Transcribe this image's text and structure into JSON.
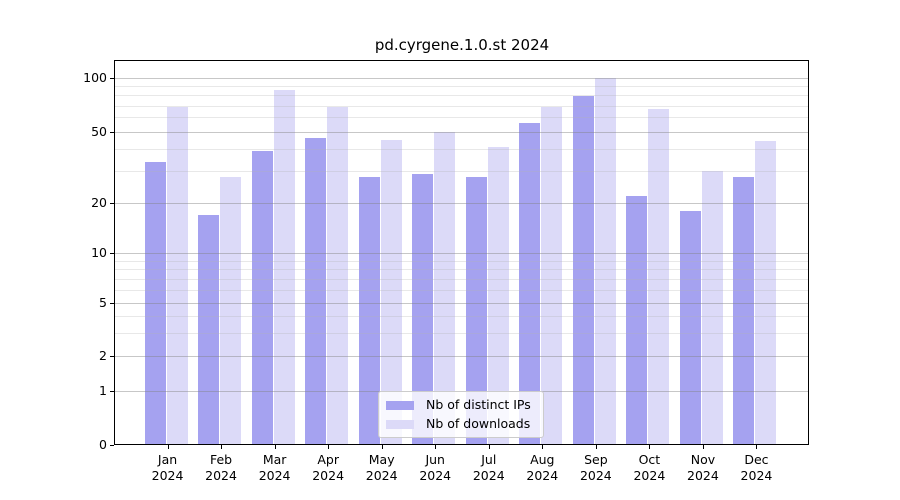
{
  "title": "pd.cyrgene.1.0.st 2024",
  "chart_data": {
    "type": "bar",
    "title": "pd.cyrgene.1.0.st 2024",
    "categories": [
      "Jan 2024",
      "Feb 2024",
      "Mar 2024",
      "Apr 2024",
      "May 2024",
      "Jun 2024",
      "Jul 2024",
      "Aug 2024",
      "Sep 2024",
      "Oct 2024",
      "Nov 2024",
      "Dec 2024"
    ],
    "series": [
      {
        "name": "Nb of distinct IPs",
        "key": "distinct-ips",
        "color": "#a5a2f0",
        "values": [
          34,
          17,
          39,
          46,
          28,
          29,
          28,
          56,
          79,
          22,
          18,
          28
        ]
      },
      {
        "name": "Nb of downloads",
        "key": "downloads",
        "color": "#dcdaf8",
        "values": [
          69,
          28,
          86,
          69,
          45,
          50,
          41,
          69,
          100,
          67,
          30,
          44
        ]
      }
    ],
    "xlabel": "",
    "ylabel": "",
    "yscale": "log-like with 0 baseline",
    "yticks": [
      100,
      50,
      20,
      10,
      5,
      2,
      1,
      0
    ],
    "minor_yticks": [
      3,
      4,
      6,
      7,
      8,
      9,
      30,
      40,
      60,
      70,
      80,
      90
    ],
    "ylim": [
      0,
      125
    ],
    "grid": true,
    "gridlines_above_bars": true,
    "legend_position": "lower center",
    "colors": {
      "bar_distinct_ips": "#a5a2f0",
      "bar_downloads": "#dcdaf8",
      "grid_major": "#bdbdbd",
      "grid_minor": "#e7e7e7",
      "axis": "#000000",
      "background": "#ffffff"
    }
  }
}
